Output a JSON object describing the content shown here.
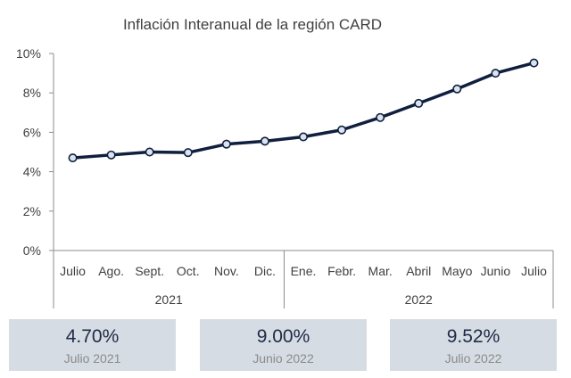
{
  "chart_data": {
    "type": "line",
    "title": "Inflación Interanual de la región CARD",
    "xlabel": "",
    "ylabel": "",
    "x": [
      "Julio",
      "Ago.",
      "Sept.",
      "Oct.",
      "Nov.",
      "Dic.",
      "Ene.",
      "Febr.",
      "Mar.",
      "Abril",
      "Mayo",
      "Junio",
      "Julio"
    ],
    "year_groups": [
      {
        "label": "2021",
        "count": 6
      },
      {
        "label": "2022",
        "count": 7
      }
    ],
    "series": [
      {
        "values": [
          4.7,
          4.85,
          5.0,
          4.97,
          5.4,
          5.55,
          5.77,
          6.12,
          6.75,
          7.47,
          8.2,
          9.0,
          9.52
        ]
      }
    ],
    "ylim": [
      0,
      10
    ],
    "yticks": [
      0,
      2,
      4,
      6,
      8,
      10
    ],
    "ytick_labels": [
      "0%",
      "2%",
      "4%",
      "6%",
      "8%",
      "10%"
    ],
    "grid": false,
    "line_color": "#0f1f3d",
    "marker_fill": "#dce3f0"
  },
  "cards": [
    {
      "value": "4.70%",
      "label": "Julio 2021"
    },
    {
      "value": "9.00%",
      "label": "Junio 2022"
    },
    {
      "value": "9.52%",
      "label": "Julio 2022"
    }
  ],
  "colors": {
    "card_bg": "#d6dce4",
    "card_value": "#1f2a44",
    "card_label": "#8a8a8a"
  }
}
